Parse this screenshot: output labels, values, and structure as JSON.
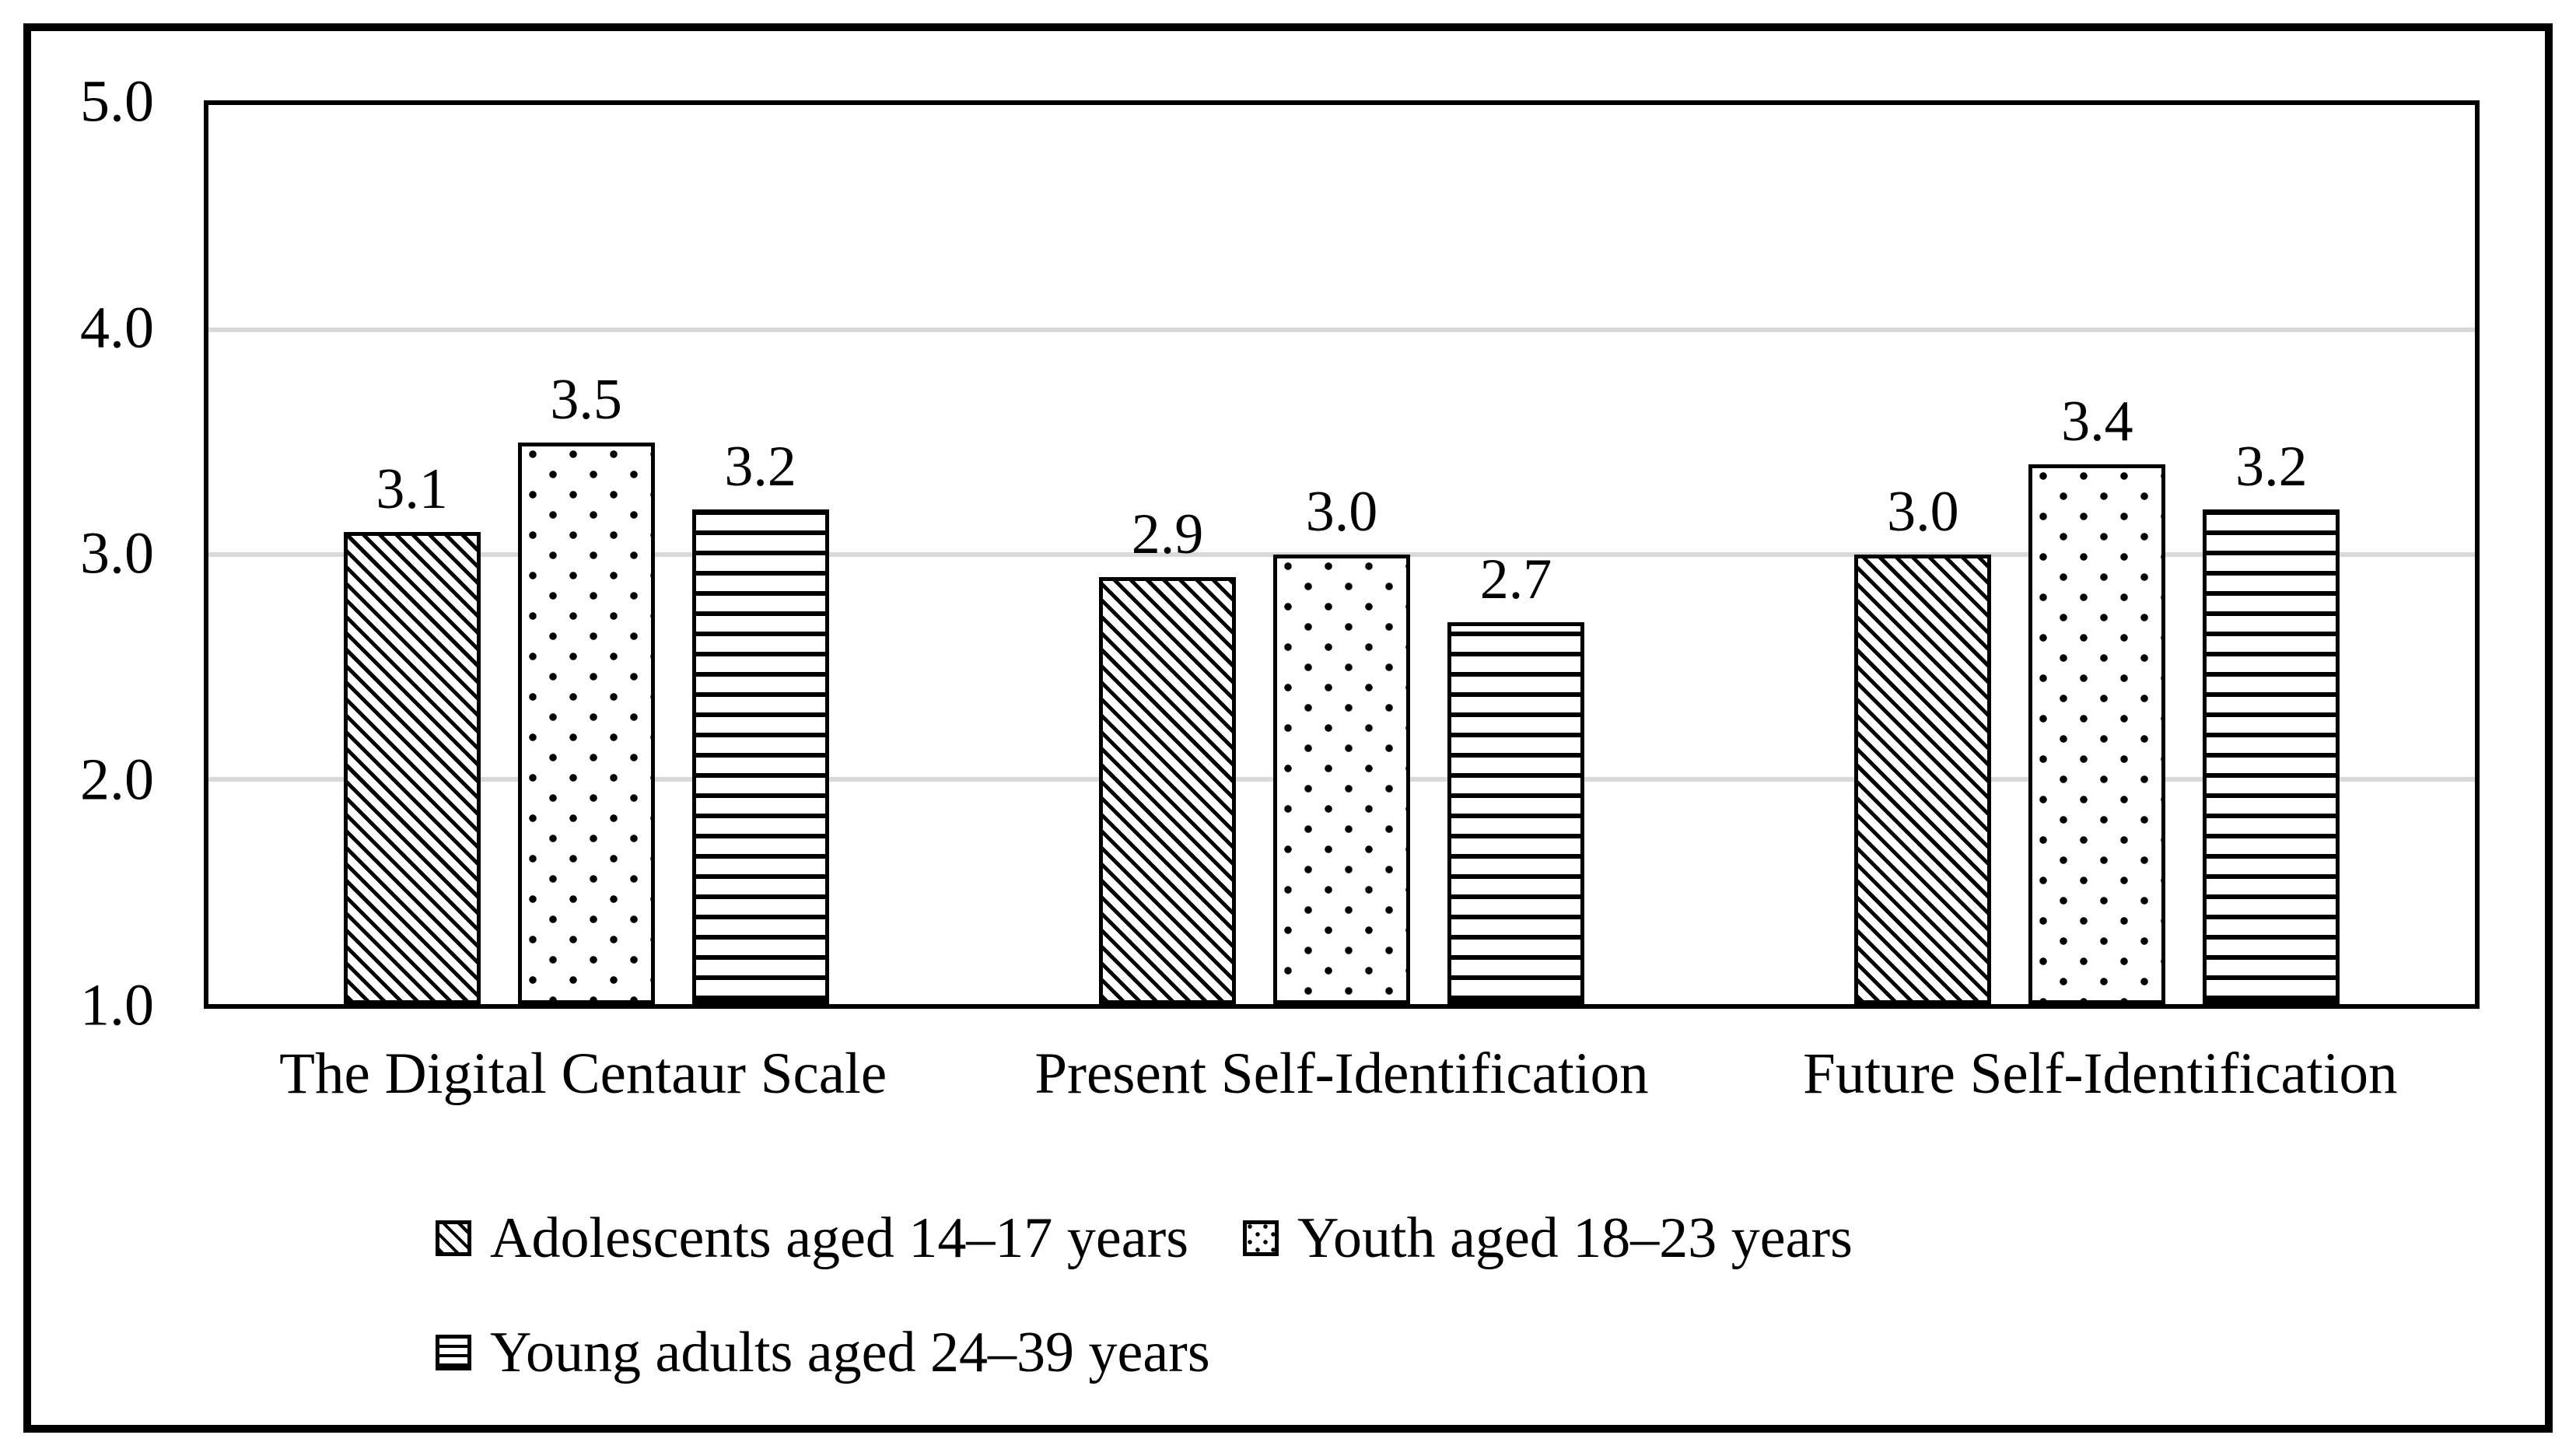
{
  "chart_data": {
    "type": "bar",
    "title": "",
    "categories": [
      "The Digital Centaur Scale",
      "Present Self-Identification",
      "Future Self-Identification"
    ],
    "series": [
      {
        "name": "Adolescents aged 14–17 years",
        "pattern": "diagonal-hatch",
        "values": [
          3.1,
          2.9,
          3.0
        ]
      },
      {
        "name": "Youth aged 18–23 years",
        "pattern": "dots",
        "values": [
          3.5,
          3.0,
          3.4
        ]
      },
      {
        "name": "Young adults aged 24–39 years",
        "pattern": "horizontal-lines",
        "values": [
          3.2,
          2.7,
          3.2
        ]
      }
    ],
    "y_axis": {
      "min": 1.0,
      "max": 5.0,
      "ticks": [
        "5.0",
        "4.0",
        "3.0",
        "2.0",
        "1.0"
      ],
      "gridlines_at": [
        4.0,
        3.0,
        2.0
      ]
    },
    "xlabel": "",
    "ylabel": "",
    "data_labels": true,
    "grid": true,
    "legend_position": "bottom",
    "colors": {
      "bar_fill": "#ffffff",
      "bar_stroke": "#000000",
      "gridline": "#d9d9d9",
      "text": "#000000",
      "figure_border": "#000000"
    }
  }
}
